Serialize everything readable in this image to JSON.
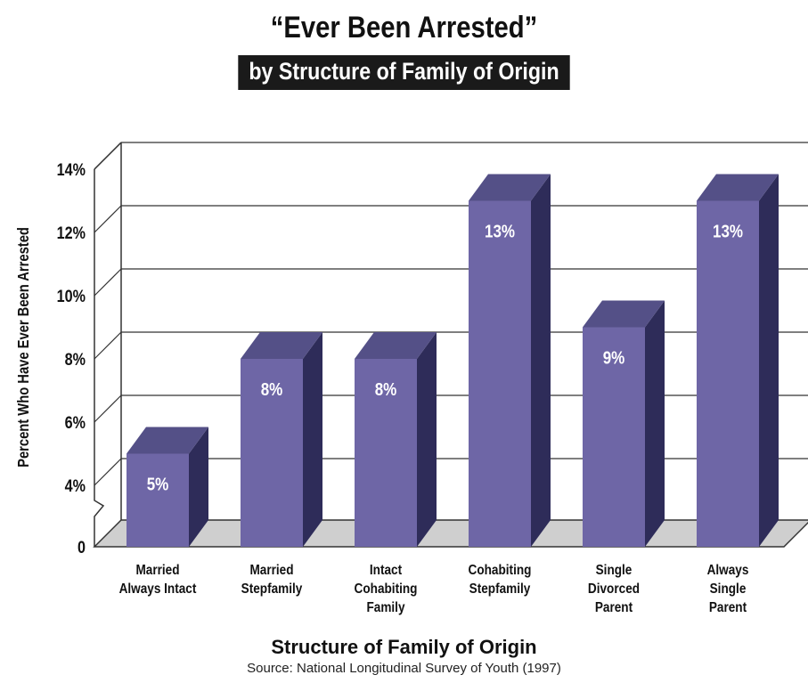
{
  "header": {
    "title": "“Ever Been Arrested”",
    "subtitle": "by Structure of Family of Origin"
  },
  "footer": {
    "xlabel": "Structure of Family of Origin",
    "source": "Source: National Longitudinal Survey of Youth (1997)"
  },
  "colors": {
    "bar_front": "#6e66a6",
    "bar_top": "#545087",
    "bar_side": "#2e2c59",
    "floor": "#cfcfcf",
    "grid": "#333333",
    "subtitle_bg": "#1a1a1a"
  },
  "chart_data": {
    "type": "bar",
    "title": "“Ever Been Arrested”",
    "subtitle": "by Structure of Family of Origin",
    "xlabel": "Structure of Family of Origin",
    "ylabel": "Percent Who Have Ever Been Arrested",
    "categories": [
      [
        "Married",
        "Always Intact"
      ],
      [
        "Married",
        "Stepfamily"
      ],
      [
        "Intact",
        "Cohabiting",
        "Family"
      ],
      [
        "Cohabiting",
        "Stepfamily"
      ],
      [
        "Single",
        "Divorced",
        "Parent"
      ],
      [
        "Always",
        "Single",
        "Parent"
      ]
    ],
    "values": [
      5,
      8,
      8,
      13,
      9,
      13
    ],
    "data_labels": [
      "5%",
      "8%",
      "8%",
      "13%",
      "9%",
      "13%"
    ],
    "yticks": [
      {
        "value": 0,
        "label": "0"
      },
      {
        "value": 4,
        "label": "4%"
      },
      {
        "value": 6,
        "label": "6%"
      },
      {
        "value": 8,
        "label": "8%"
      },
      {
        "value": 10,
        "label": "10%"
      },
      {
        "value": 12,
        "label": "12%"
      },
      {
        "value": 14,
        "label": "14%"
      }
    ],
    "ylim": [
      0,
      14
    ],
    "axis_break": true,
    "grid": true,
    "three_d": true
  }
}
